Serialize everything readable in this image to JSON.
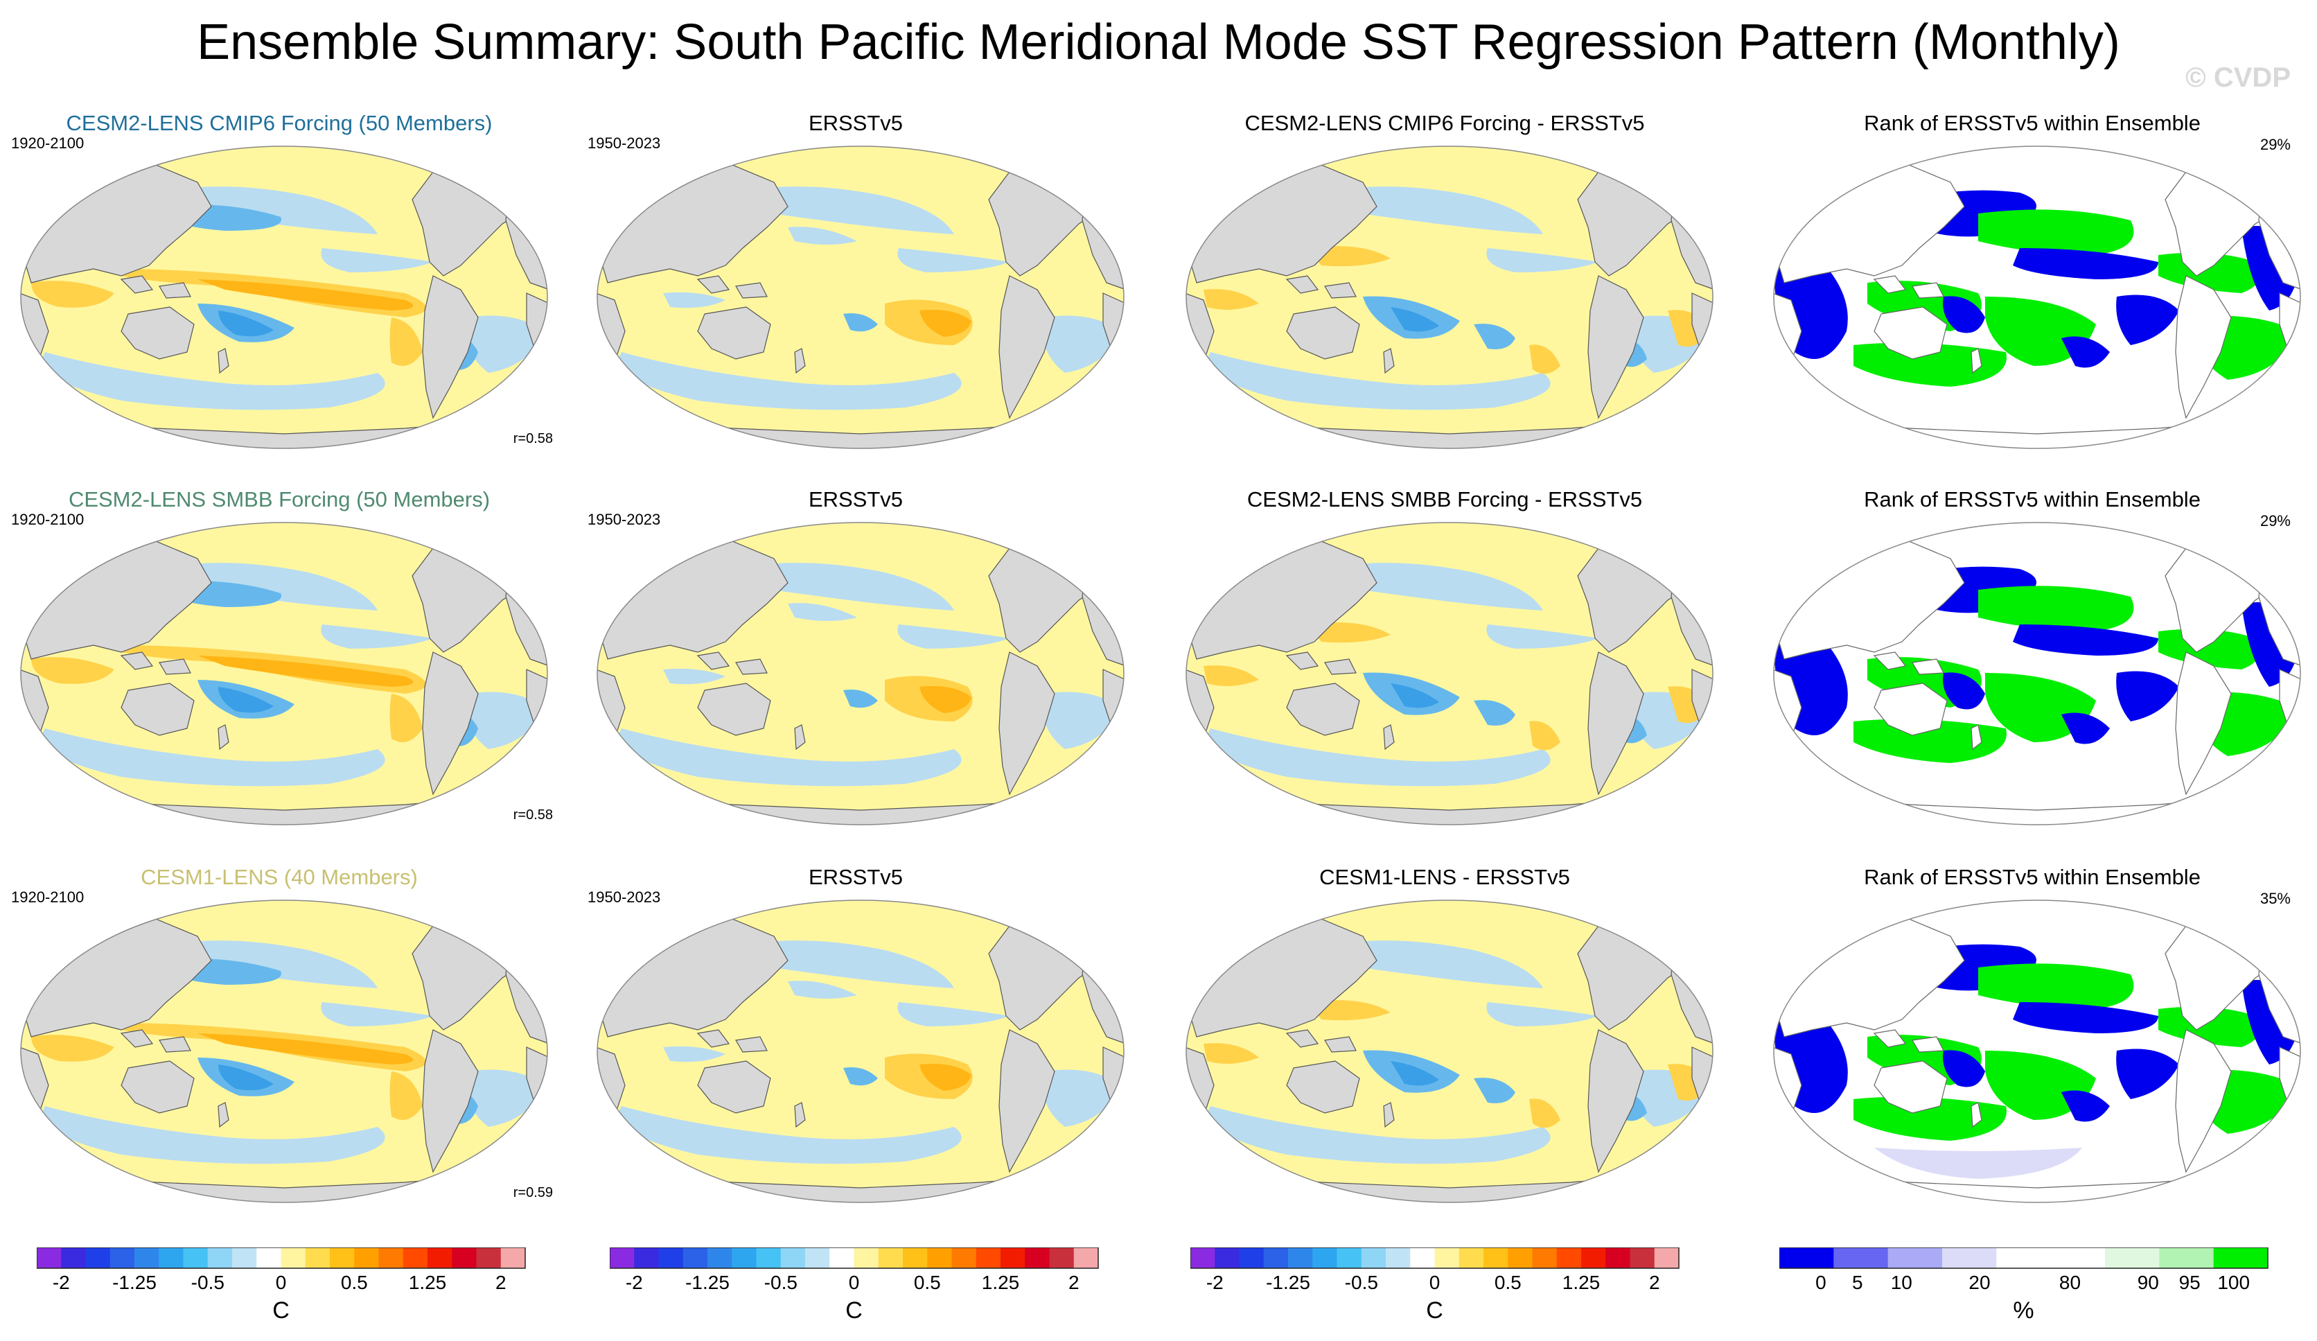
{
  "title": "Ensemble Summary: South Pacific Meridional Mode SST Regression Pattern (Monthly)",
  "watermark": "© CVDP",
  "colors": {
    "land": "#d8d8d8",
    "ocean_warm": "#fff7a0",
    "ocean_cool": "#b9dcf1",
    "deep_cool": "#66b8ec",
    "deepest_cool": "#3a9fe6",
    "mid_warm": "#ffd24a",
    "strong_warm": "#ffb515",
    "rank_low": "#0000ee",
    "rank_high": "#00ee00",
    "rank_white": "#ffffff",
    "model_title_1": "#1f6f9a",
    "model_title_2": "#4e8a6f",
    "model_title_3": "#c8c070"
  },
  "chart_data": [
    {
      "type": "heatmap",
      "title": "CESM2-LENS CMIP6 Forcing (50 Members)",
      "period": "1920-2100",
      "pattern_correlation": "r=0.58",
      "units": "C"
    },
    {
      "type": "heatmap",
      "title": "ERSSTv5",
      "period": "1950-2023",
      "units": "C"
    },
    {
      "type": "heatmap",
      "title": "CESM2-LENS CMIP6 Forcing - ERSSTv5",
      "units": "C"
    },
    {
      "type": "heatmap",
      "title": "Rank of ERSSTv5 within Ensemble",
      "rank_above_threshold": "29%",
      "units": "%"
    },
    {
      "type": "heatmap",
      "title": "CESM2-LENS SMBB Forcing (50 Members)",
      "period": "1920-2100",
      "pattern_correlation": "r=0.58",
      "units": "C"
    },
    {
      "type": "heatmap",
      "title": "ERSSTv5",
      "period": "1950-2023",
      "units": "C"
    },
    {
      "type": "heatmap",
      "title": "CESM2-LENS SMBB Forcing - ERSSTv5",
      "units": "C"
    },
    {
      "type": "heatmap",
      "title": "Rank of ERSSTv5 within Ensemble",
      "rank_above_threshold": "29%",
      "units": "%"
    },
    {
      "type": "heatmap",
      "title": "CESM1-LENS (40 Members)",
      "period": "1920-2100",
      "pattern_correlation": "r=0.59",
      "units": "C"
    },
    {
      "type": "heatmap",
      "title": "ERSSTv5",
      "period": "1950-2023",
      "units": "C"
    },
    {
      "type": "heatmap",
      "title": "CESM1-LENS - ERSSTv5",
      "units": "C"
    },
    {
      "type": "heatmap",
      "title": "Rank of ERSSTv5 within Ensemble",
      "rank_above_threshold": "35%",
      "units": "%"
    }
  ],
  "colorbars": {
    "sst": {
      "label": "C",
      "colors": [
        "#8a2be2",
        "#3a2ae0",
        "#1f3fe8",
        "#2b62e8",
        "#2f86ea",
        "#2ea6ef",
        "#46c2f4",
        "#8fd5f6",
        "#c0e4f6",
        "#ffffff",
        "#fff4a0",
        "#ffdc4e",
        "#ffc018",
        "#ffa000",
        "#ff7a00",
        "#ff4a00",
        "#f21c00",
        "#d80020",
        "#c8303c",
        "#f4a8aa"
      ],
      "tick_labels": [
        "-2",
        "-1.25",
        "-0.5",
        "0",
        "0.5",
        "1.25",
        "2"
      ],
      "tick_index": [
        1,
        4,
        7,
        10,
        13,
        16,
        19
      ]
    },
    "rank": {
      "label": "%",
      "colors": [
        "#0000ee",
        "#6666f2",
        "#aaaaf6",
        "#dcdcf8",
        "#ffffff",
        "#ffffff",
        "#dff8df",
        "#b2f2b2",
        "#00ee00"
      ],
      "tick_labels": [
        "0",
        "5",
        "10",
        "20",
        "80",
        "90",
        "95",
        "100"
      ],
      "tick_pos": [
        0.085,
        0.16,
        0.25,
        0.41,
        0.595,
        0.755,
        0.84,
        0.93
      ]
    }
  }
}
